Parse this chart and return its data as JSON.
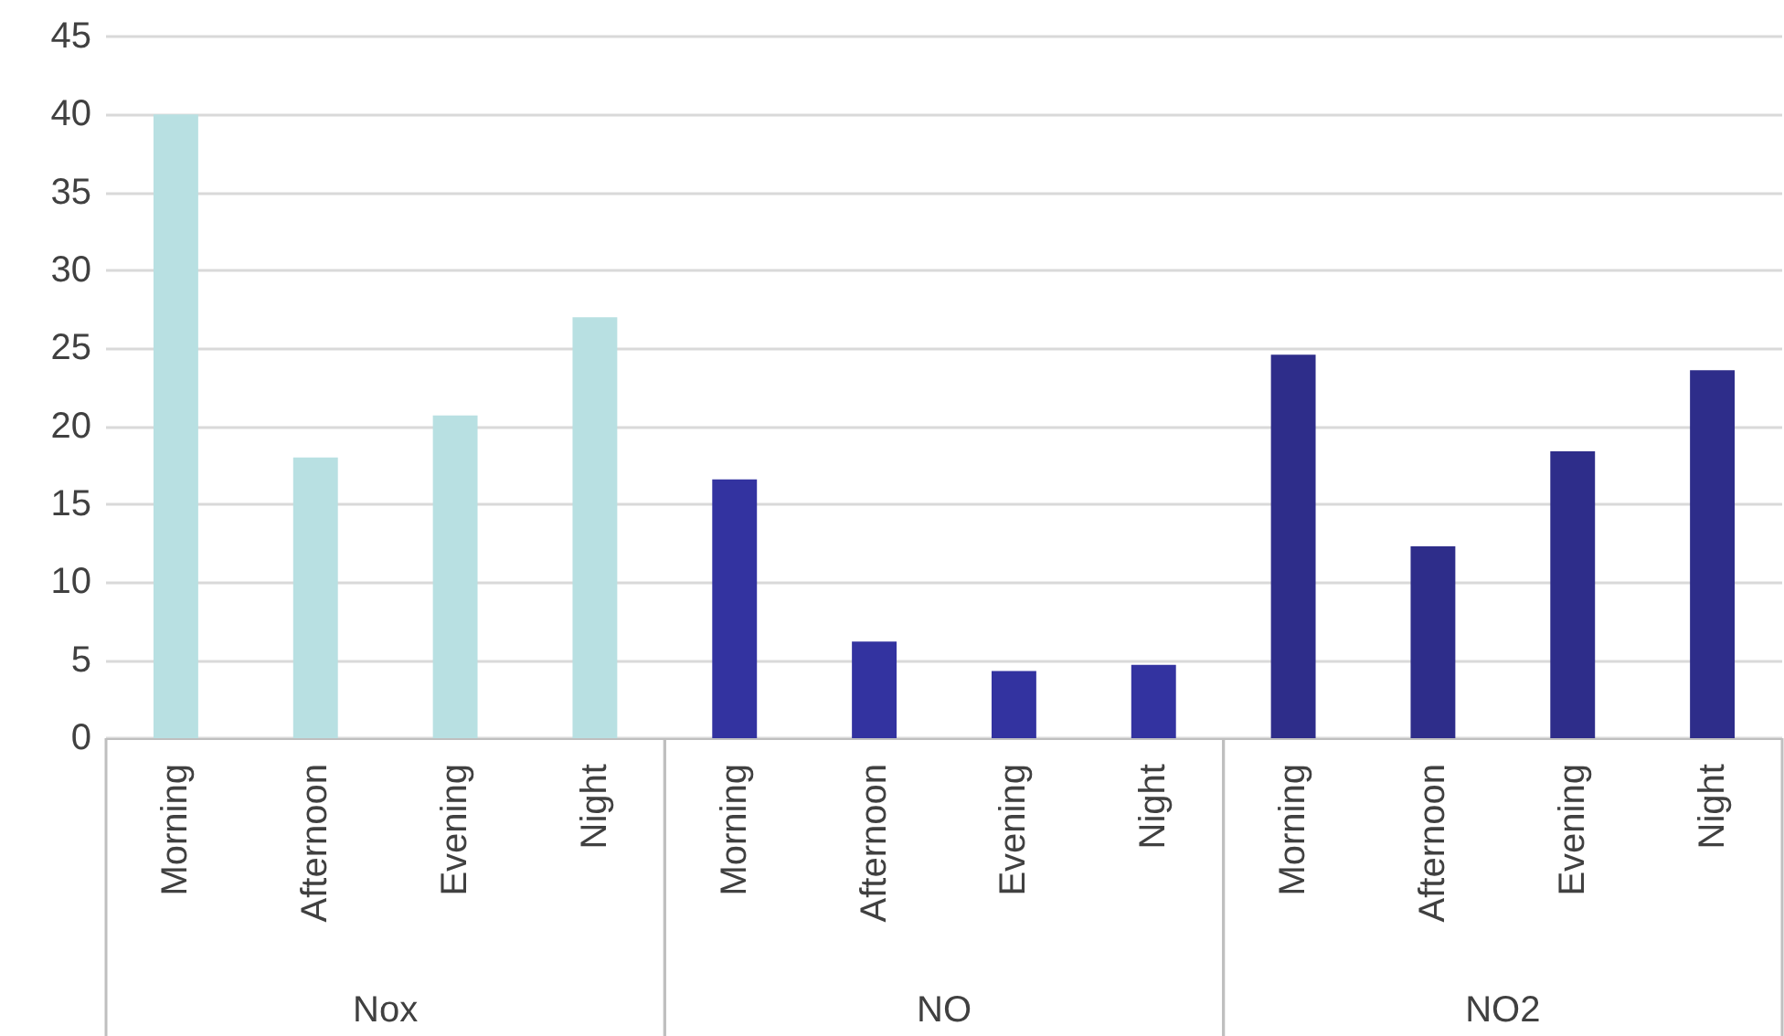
{
  "chart_data": {
    "type": "bar",
    "categories": [
      "Morning",
      "Afternoon",
      "Evening",
      "Night",
      "Morning",
      "Afternoon",
      "Evening",
      "Night",
      "Morning",
      "Afternoon",
      "Evening",
      "Night"
    ],
    "values": [
      40,
      18,
      20.7,
      27,
      16.6,
      6.2,
      4.3,
      4.7,
      24.6,
      12.3,
      18.4,
      23.6
    ],
    "colors": [
      "#b8e0e2",
      "#b8e0e2",
      "#b8e0e2",
      "#b8e0e2",
      "#3333a0",
      "#3333a0",
      "#3333a0",
      "#3333a0",
      "#2e2d8a",
      "#2e2d8a",
      "#2e2d8a",
      "#2e2d8a"
    ],
    "annotations": [
      "Nox",
      "NO",
      "NO2"
    ],
    "ylim": [
      0,
      45
    ],
    "yticks": [
      0,
      5,
      10,
      15,
      20,
      25,
      30,
      35,
      40,
      45
    ],
    "grid": "y"
  }
}
